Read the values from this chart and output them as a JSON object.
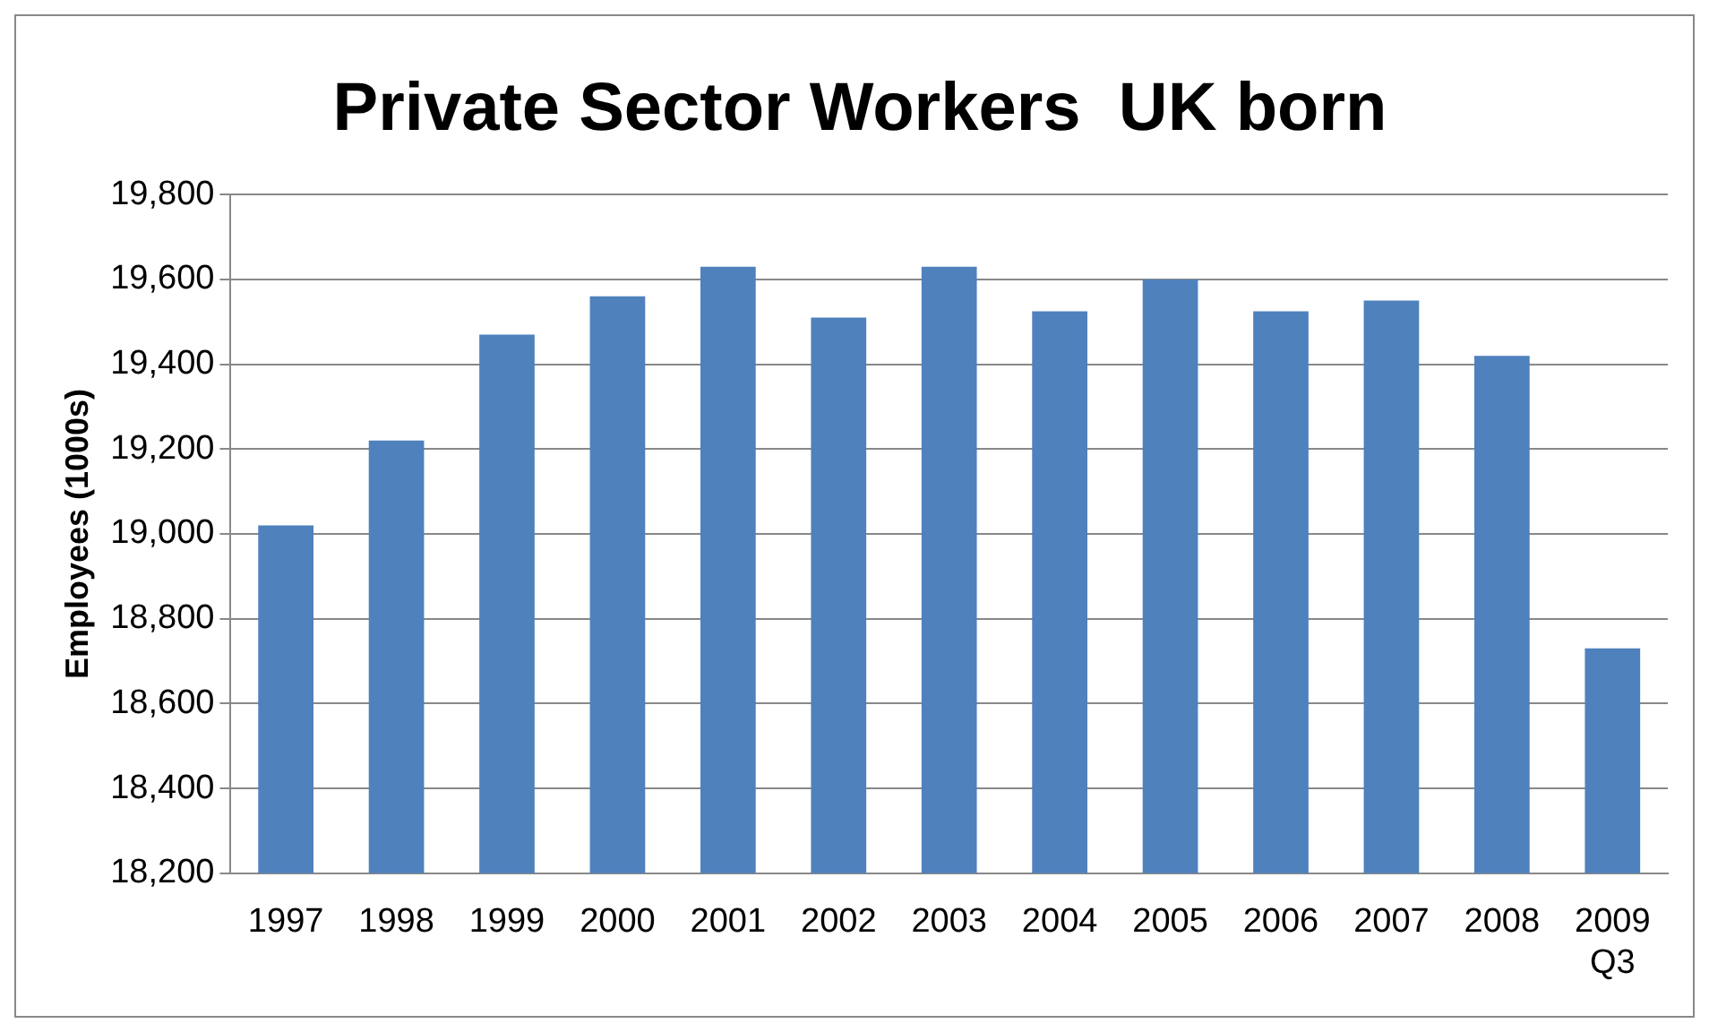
{
  "chart_data": {
    "type": "bar",
    "title": "Private Sector Workers  UK born",
    "ylabel": "Employees (1000s)",
    "categories": [
      "1997",
      "1998",
      "1999",
      "2000",
      "2001",
      "2002",
      "2003",
      "2004",
      "2005",
      "2006",
      "2007",
      "2008",
      "2009\nQ3"
    ],
    "values": [
      19020,
      19220,
      19470,
      19560,
      19630,
      19510,
      19630,
      19525,
      19600,
      19525,
      19550,
      19420,
      18730
    ],
    "color": "#4f81bd",
    "ylim": [
      18200,
      19800
    ],
    "yticks": [
      {
        "value": 18200,
        "label": "18,200"
      },
      {
        "value": 18400,
        "label": "18,400"
      },
      {
        "value": 18600,
        "label": "18,600"
      },
      {
        "value": 18800,
        "label": "18,800"
      },
      {
        "value": 19000,
        "label": "19,000"
      },
      {
        "value": 19200,
        "label": "19,200"
      },
      {
        "value": 19400,
        "label": "19,400"
      },
      {
        "value": 19600,
        "label": "19,600"
      },
      {
        "value": 19800,
        "label": "19,800"
      }
    ],
    "grid": "y",
    "legend": false
  }
}
